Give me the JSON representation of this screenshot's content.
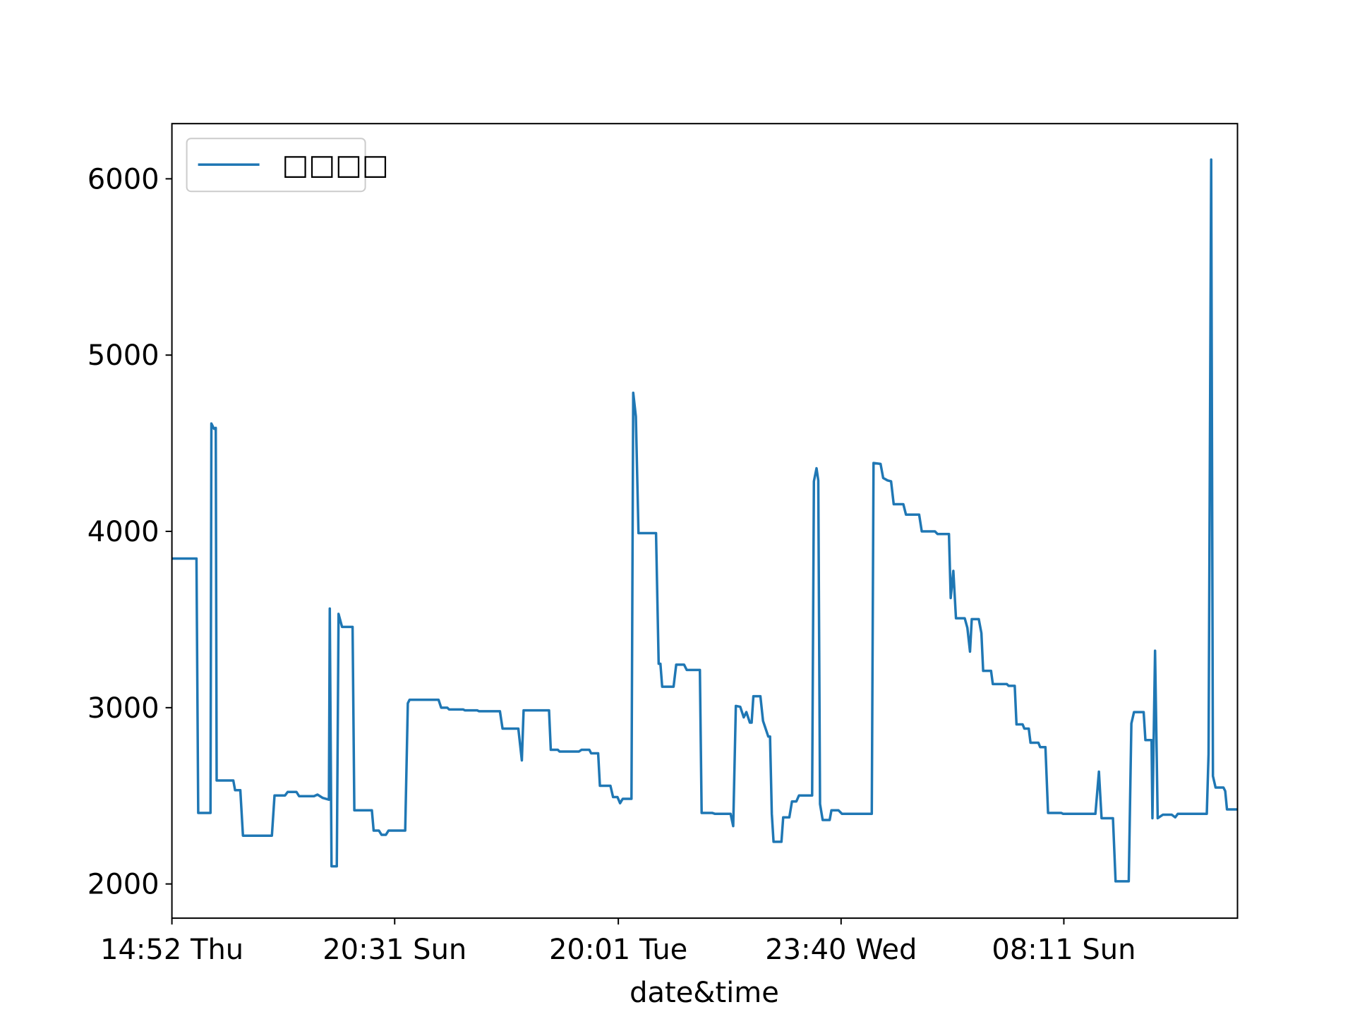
{
  "chart_data": {
    "type": "line",
    "xlabel": "date&time",
    "x": [
      0,
      28,
      30,
      44,
      45,
      48,
      50,
      51,
      70,
      72,
      78,
      81,
      114,
      117,
      129,
      132,
      142,
      145,
      162,
      166,
      172,
      179,
      180,
      182,
      188,
      190,
      194,
      206,
      208,
      228,
      230,
      236,
      239,
      244,
      247,
      266,
      269,
      271,
      304,
      307,
      314,
      316,
      332,
      334,
      348,
      350,
      374,
      377,
      395,
      399,
      401,
      430,
      432,
      440,
      442,
      464,
      467,
      476,
      478,
      486,
      488,
      500,
      503,
      508,
      511,
      514,
      524,
      526,
      529,
      532,
      552,
      555,
      557,
      559,
      572,
      575,
      584,
      587,
      602,
      604,
      616,
      619,
      637,
      640,
      643,
      648,
      652,
      655,
      659,
      661,
      663,
      671,
      674,
      680,
      682,
      684,
      686,
      695,
      697,
      704,
      707,
      712,
      715,
      730,
      732,
      735,
      737,
      739,
      742,
      750,
      752,
      760,
      764,
      798,
      800,
      808,
      811,
      816,
      820,
      823,
      834,
      837,
      852,
      855,
      870,
      873,
      886,
      888,
      891,
      894,
      904,
      907,
      910,
      912,
      920,
      923,
      925,
      934,
      936,
      952,
      954,
      961,
      963,
      970,
      972,
      977,
      979,
      988,
      990,
      996,
      999,
      1014,
      1016,
      1053,
      1057,
      1060,
      1073,
      1076,
      1091,
      1094,
      1097,
      1108,
      1110,
      1117,
      1118,
      1121,
      1124,
      1130,
      1140,
      1144,
      1147,
      1180,
      1182,
      1185,
      1187,
      1190,
      1199,
      1201,
      1203,
      1215
    ],
    "xlim": [
      0,
      1215
    ],
    "xticks": [
      {
        "value": 0,
        "label": "14:52 Thu"
      },
      {
        "value": 254,
        "label": "20:31 Sun"
      },
      {
        "value": 509,
        "label": "20:01 Tue"
      },
      {
        "value": 763,
        "label": "23:40 Wed"
      },
      {
        "value": 1017,
        "label": "08:11 Sun"
      }
    ],
    "ylim": [
      1806,
      6313
    ],
    "yticks": [
      2000,
      3000,
      4000,
      5000,
      6000
    ],
    "legend": "upper left",
    "series": [
      {
        "name": "□□□□",
        "color": "#1f77b4",
        "values": [
          3846,
          3846,
          2403,
          2403,
          4612,
          4582,
          4587,
          2587,
          2587,
          2532,
          2532,
          2274,
          2274,
          2502,
          2502,
          2522,
          2522,
          2498,
          2498,
          2507,
          2488,
          2478,
          3562,
          2100,
          2100,
          3532,
          3458,
          3458,
          2418,
          2418,
          2303,
          2303,
          2279,
          2279,
          2303,
          2303,
          3025,
          3045,
          3045,
          3000,
          3000,
          2990,
          2990,
          2985,
          2985,
          2980,
          2980,
          2881,
          2881,
          2701,
          2985,
          2985,
          2761,
          2761,
          2751,
          2751,
          2761,
          2761,
          2741,
          2741,
          2557,
          2557,
          2493,
          2493,
          2458,
          2483,
          2483,
          4786,
          4652,
          3990,
          3990,
          3249,
          3249,
          3119,
          3119,
          3244,
          3244,
          3214,
          3214,
          2403,
          2403,
          2398,
          2398,
          2328,
          3010,
          3005,
          2945,
          2975,
          2915,
          2915,
          3065,
          3065,
          2925,
          2836,
          2836,
          2398,
          2239,
          2239,
          2378,
          2378,
          2468,
          2468,
          2502,
          2502,
          4284,
          4358,
          4289,
          2453,
          2363,
          2363,
          2418,
          2418,
          2398,
          2398,
          4388,
          4383,
          4303,
          4289,
          4284,
          4154,
          4154,
          4095,
          4095,
          4000,
          4000,
          3985,
          3985,
          3622,
          3776,
          3507,
          3507,
          3453,
          3318,
          3502,
          3502,
          3423,
          3209,
          3209,
          3134,
          3134,
          3124,
          3124,
          2905,
          2905,
          2881,
          2881,
          2801,
          2801,
          2776,
          2776,
          2403,
          2403,
          2398,
          2398,
          2637,
          2373,
          2373,
          2015,
          2015,
          2910,
          2975,
          2975,
          2816,
          2816,
          2373,
          3323,
          2373,
          2393,
          2393,
          2378,
          2398,
          2398,
          2736,
          6109,
          2612,
          2547,
          2547,
          2527,
          2423,
          2423
        ]
      }
    ]
  }
}
